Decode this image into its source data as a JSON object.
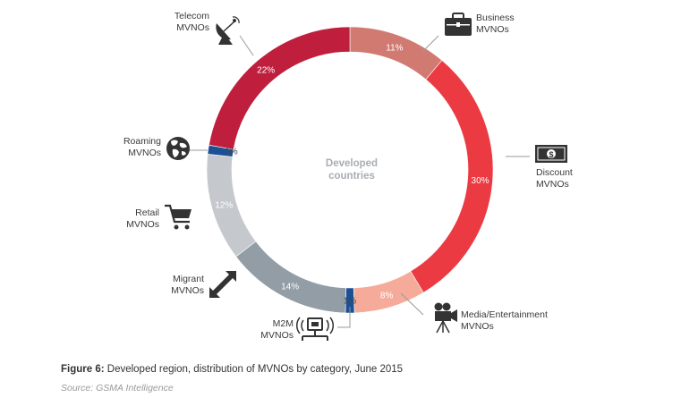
{
  "chart_data": {
    "type": "donut",
    "title": "",
    "center_label_line1": "Developed",
    "center_label_line2": "countries",
    "slices": [
      {
        "label_line1": "Business",
        "label_line2": "MVNOs",
        "value": 11,
        "value_label": "11%",
        "color": "#d07a72",
        "icon": "briefcase-icon"
      },
      {
        "label_line1": "Discount",
        "label_line2": "MVNOs",
        "value": 30,
        "value_label": "30%",
        "color": "#ec3a43",
        "icon": "dollar-bill-icon"
      },
      {
        "label_line1": "Media/Entertainment",
        "label_line2": "MVNOs",
        "value": 8,
        "value_label": "8%",
        "color": "#f6ab9a",
        "icon": "movie-camera-icon"
      },
      {
        "label_line1": "M2M",
        "label_line2": "MVNOs",
        "value": 1,
        "value_label": "1%",
        "color": "#1c4f94",
        "icon": "network-terminal-icon"
      },
      {
        "label_line1": "Migrant",
        "label_line2": "MVNOs",
        "value": 14,
        "value_label": "14%",
        "color": "#939da6",
        "icon": "diagonal-arrows-icon"
      },
      {
        "label_line1": "Retail",
        "label_line2": "MVNOs",
        "value": 12,
        "value_label": "12%",
        "color": "#c5c9ce",
        "icon": "shopping-cart-icon"
      },
      {
        "label_line1": "Roaming",
        "label_line2": "MVNOs",
        "value": 1,
        "value_label": "1%",
        "color": "#1c4f94",
        "icon": "globe-icon"
      },
      {
        "label_line1": "Telecom",
        "label_line2": "MVNOs",
        "value": 22,
        "value_label": "22%",
        "color": "#bf1f3c",
        "icon": "satellite-dish-icon"
      }
    ]
  },
  "caption": {
    "figure_label": "Figure 6:",
    "text": " Developed region, distribution of MVNOs by category, June 2015"
  },
  "source": "Source: GSMA Intelligence"
}
